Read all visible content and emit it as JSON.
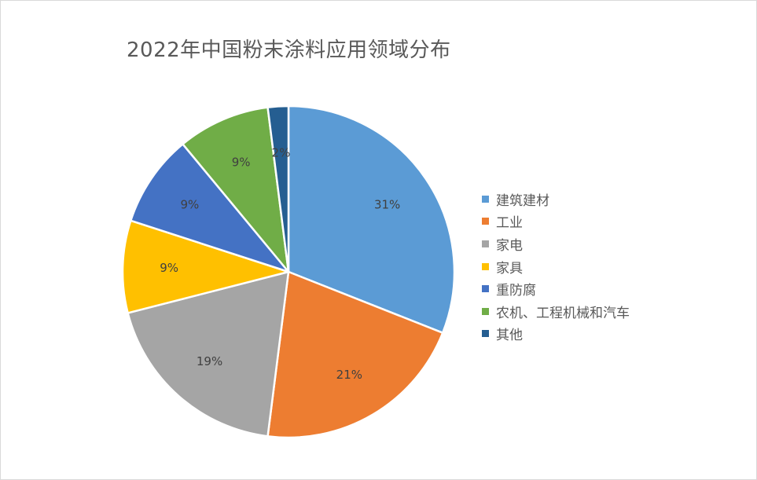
{
  "chart_data": {
    "type": "pie",
    "title": "2022年中国粉末涂料应用领域分布",
    "categories": [
      "建筑建材",
      "工业",
      "家电",
      "家具",
      "重防腐",
      "农机、工程机械和汽车",
      "其他"
    ],
    "values": [
      31,
      21,
      19,
      9,
      9,
      9,
      2
    ],
    "labels": [
      "31%",
      "21%",
      "19%",
      "9%",
      "9%",
      "9%",
      "2%"
    ],
    "colors": [
      "#5b9bd5",
      "#ed7d31",
      "#a5a5a5",
      "#ffc000",
      "#4472c4",
      "#70ad47",
      "#255e91"
    ],
    "legend_position": "right"
  }
}
